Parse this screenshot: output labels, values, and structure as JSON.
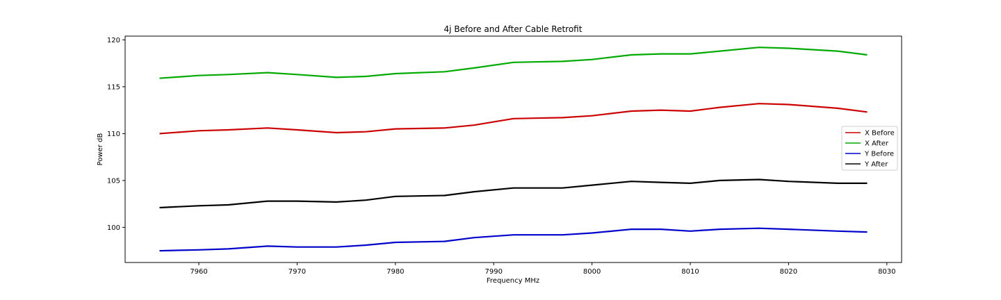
{
  "chart_data": {
    "type": "line",
    "title": "4j Before and After Cable Retrofit",
    "xlabel": "Frequency MHz",
    "ylabel": "Power dB",
    "xlim": [
      7952.5,
      8031.5
    ],
    "ylim": [
      96.25,
      120.4
    ],
    "xticks": [
      7960,
      7970,
      7980,
      7990,
      8000,
      8010,
      8020,
      8030
    ],
    "yticks": [
      100,
      105,
      110,
      115,
      120
    ],
    "grid": false,
    "legend_position": "center-right",
    "series": [
      {
        "name": "X Before",
        "color": "#cc0000",
        "x": [
          7956,
          7960,
          7963,
          7967,
          7970,
          7974,
          7977,
          7980,
          7985,
          7988,
          7992,
          7997,
          8000,
          8004,
          8007,
          8010,
          8013,
          8017,
          8020,
          8025,
          8028
        ],
        "y": [
          110.0,
          110.3,
          110.4,
          110.6,
          110.4,
          110.1,
          110.2,
          110.5,
          110.6,
          110.9,
          111.6,
          111.7,
          111.9,
          112.4,
          112.5,
          112.4,
          112.8,
          113.2,
          113.1,
          112.7,
          112.3
        ]
      },
      {
        "name": "X After",
        "color": "#00aa00",
        "x": [
          7956,
          7960,
          7963,
          7967,
          7970,
          7974,
          7977,
          7980,
          7985,
          7988,
          7992,
          7997,
          8000,
          8004,
          8007,
          8010,
          8013,
          8017,
          8020,
          8025,
          8028
        ],
        "y": [
          115.9,
          116.2,
          116.3,
          116.5,
          116.3,
          116.0,
          116.1,
          116.4,
          116.6,
          117.0,
          117.6,
          117.7,
          117.9,
          118.4,
          118.5,
          118.5,
          118.8,
          119.2,
          119.1,
          118.8,
          118.4
        ]
      },
      {
        "name": "Y Before",
        "color": "#0000cc",
        "x": [
          7956,
          7960,
          7963,
          7967,
          7970,
          7974,
          7977,
          7980,
          7985,
          7988,
          7992,
          7997,
          8000,
          8004,
          8007,
          8010,
          8013,
          8017,
          8020,
          8025,
          8028
        ],
        "y": [
          97.5,
          97.6,
          97.7,
          98.0,
          97.9,
          97.9,
          98.1,
          98.4,
          98.5,
          98.9,
          99.2,
          99.2,
          99.4,
          99.8,
          99.8,
          99.6,
          99.8,
          99.9,
          99.8,
          99.6,
          99.5
        ]
      },
      {
        "name": "Y After",
        "color": "#000000",
        "x": [
          7956,
          7960,
          7963,
          7967,
          7970,
          7974,
          7977,
          7980,
          7985,
          7988,
          7992,
          7997,
          8000,
          8004,
          8007,
          8010,
          8013,
          8017,
          8020,
          8025,
          8028
        ],
        "y": [
          102.1,
          102.3,
          102.4,
          102.8,
          102.8,
          102.7,
          102.9,
          103.3,
          103.4,
          103.8,
          104.2,
          104.2,
          104.5,
          104.9,
          104.8,
          104.7,
          105.0,
          105.1,
          104.9,
          104.7,
          104.7
        ]
      }
    ]
  }
}
